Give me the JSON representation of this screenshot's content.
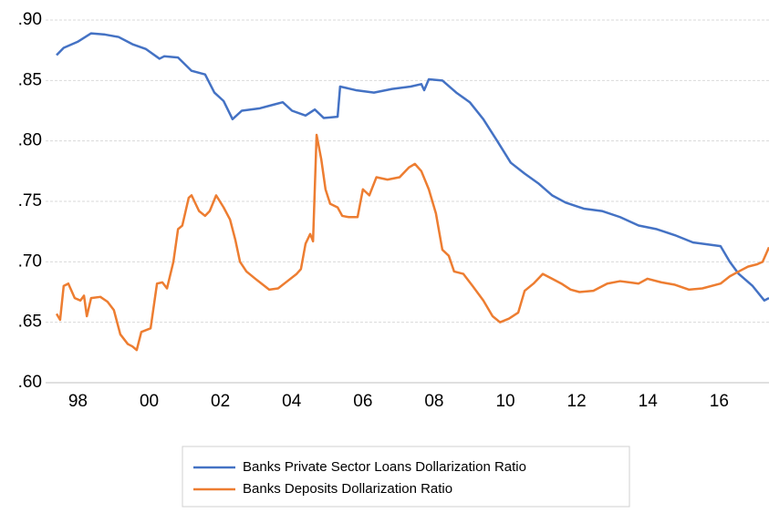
{
  "chart_data": {
    "type": "line",
    "xlim": [
      1997.4,
      2017.4
    ],
    "xticks": [
      {
        "value": 1998,
        "label": "98"
      },
      {
        "value": 2000,
        "label": "00"
      },
      {
        "value": 2002,
        "label": "02"
      },
      {
        "value": 2004,
        "label": "04"
      },
      {
        "value": 2006,
        "label": "06"
      },
      {
        "value": 2008,
        "label": "08"
      },
      {
        "value": 2010,
        "label": "10"
      },
      {
        "value": 2012,
        "label": "12"
      },
      {
        "value": 2014,
        "label": "14"
      },
      {
        "value": 2016,
        "label": "16"
      }
    ],
    "ylim": [
      0.6,
      0.9
    ],
    "yticks": [
      {
        "value": 0.6,
        "label": ".60"
      },
      {
        "value": 0.65,
        "label": ".65"
      },
      {
        "value": 0.7,
        "label": ".70"
      },
      {
        "value": 0.75,
        "label": ".75"
      },
      {
        "value": 0.8,
        "label": ".80"
      },
      {
        "value": 0.85,
        "label": ".85"
      },
      {
        "value": 0.9,
        "label": ".90"
      }
    ],
    "grid": true,
    "legend": "bottom",
    "series": [
      {
        "name": "Banks Private Sector Loans Dollarization Ratio",
        "color": "#4472c4",
        "x": [
          1997.4,
          1997.6,
          1997.99,
          1998.37,
          1998.76,
          1999.14,
          1999.53,
          1999.91,
          2000.29,
          2000.42,
          2000.81,
          2001.19,
          2001.57,
          2001.83,
          2002.09,
          2002.34,
          2002.6,
          2003.11,
          2003.49,
          2003.75,
          2004.01,
          2004.39,
          2004.65,
          2004.9,
          2005.29,
          2005.36,
          2005.8,
          2006.31,
          2006.82,
          2007.34,
          2007.64,
          2007.72,
          2007.85,
          2008.23,
          2008.62,
          2009.0,
          2009.38,
          2009.77,
          2010.15,
          2010.54,
          2010.92,
          2011.31,
          2011.69,
          2012.2,
          2012.71,
          2013.22,
          2013.74,
          2014.25,
          2014.76,
          2015.27,
          2016.04,
          2016.3,
          2016.55,
          2016.94,
          2017.27,
          2017.4
        ],
        "values": [
          0.871,
          0.877,
          0.882,
          0.889,
          0.888,
          0.886,
          0.88,
          0.876,
          0.868,
          0.87,
          0.869,
          0.858,
          0.855,
          0.84,
          0.833,
          0.818,
          0.825,
          0.827,
          0.83,
          0.832,
          0.825,
          0.821,
          0.826,
          0.819,
          0.82,
          0.845,
          0.842,
          0.84,
          0.843,
          0.845,
          0.847,
          0.842,
          0.851,
          0.85,
          0.84,
          0.832,
          0.818,
          0.8,
          0.782,
          0.773,
          0.765,
          0.755,
          0.749,
          0.744,
          0.742,
          0.737,
          0.73,
          0.727,
          0.722,
          0.716,
          0.713,
          0.7,
          0.69,
          0.68,
          0.668,
          0.67
        ]
      },
      {
        "name": "Banks Deposits Dollarization Ratio",
        "color": "#ed7d31",
        "x": [
          1997.4,
          1997.5,
          1997.6,
          1997.73,
          1997.91,
          1998.07,
          1998.17,
          1998.25,
          1998.37,
          1998.63,
          1998.83,
          1999.01,
          1999.19,
          1999.4,
          1999.53,
          1999.65,
          1999.78,
          2000.04,
          2000.22,
          2000.37,
          2000.5,
          2000.68,
          2000.81,
          2000.93,
          2001.11,
          2001.19,
          2001.4,
          2001.57,
          2001.7,
          2001.88,
          2002.09,
          2002.27,
          2002.42,
          2002.55,
          2002.73,
          2002.98,
          2003.24,
          2003.37,
          2003.62,
          2003.88,
          2004.14,
          2004.26,
          2004.39,
          2004.52,
          2004.6,
          2004.7,
          2004.83,
          2004.95,
          2005.08,
          2005.29,
          2005.42,
          2005.6,
          2005.85,
          2006.0,
          2006.18,
          2006.38,
          2006.69,
          2007.03,
          2007.29,
          2007.46,
          2007.64,
          2007.85,
          2008.05,
          2008.23,
          2008.41,
          2008.56,
          2008.82,
          2009.08,
          2009.38,
          2009.64,
          2009.85,
          2010.1,
          2010.36,
          2010.54,
          2010.79,
          2011.05,
          2011.31,
          2011.57,
          2011.83,
          2012.08,
          2012.47,
          2012.86,
          2013.22,
          2013.48,
          2013.74,
          2013.99,
          2014.38,
          2014.76,
          2015.15,
          2015.53,
          2016.04,
          2016.3,
          2016.55,
          2016.81,
          2017.07,
          2017.22,
          2017.4
        ],
        "values": [
          0.657,
          0.652,
          0.68,
          0.682,
          0.67,
          0.668,
          0.672,
          0.655,
          0.67,
          0.671,
          0.667,
          0.66,
          0.64,
          0.632,
          0.63,
          0.627,
          0.642,
          0.645,
          0.682,
          0.683,
          0.678,
          0.7,
          0.727,
          0.73,
          0.753,
          0.755,
          0.742,
          0.738,
          0.742,
          0.755,
          0.745,
          0.735,
          0.718,
          0.7,
          0.692,
          0.686,
          0.68,
          0.677,
          0.678,
          0.684,
          0.69,
          0.694,
          0.715,
          0.723,
          0.717,
          0.805,
          0.785,
          0.76,
          0.748,
          0.745,
          0.738,
          0.737,
          0.737,
          0.76,
          0.755,
          0.77,
          0.768,
          0.77,
          0.778,
          0.781,
          0.775,
          0.76,
          0.74,
          0.71,
          0.705,
          0.692,
          0.69,
          0.68,
          0.668,
          0.655,
          0.65,
          0.653,
          0.658,
          0.676,
          0.682,
          0.69,
          0.686,
          0.682,
          0.677,
          0.675,
          0.676,
          0.682,
          0.684,
          0.683,
          0.682,
          0.686,
          0.683,
          0.681,
          0.677,
          0.678,
          0.682,
          0.688,
          0.692,
          0.696,
          0.698,
          0.7,
          0.712
        ]
      }
    ]
  }
}
